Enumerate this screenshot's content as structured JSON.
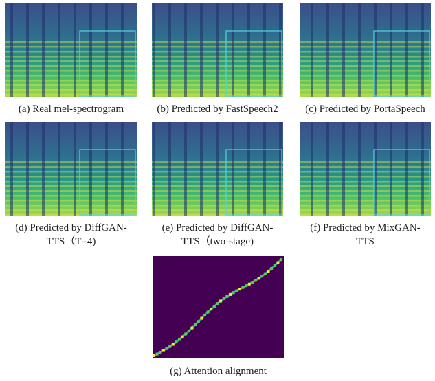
{
  "panels": [
    {
      "caption": [
        "(a) Real mel-spectrogram"
      ]
    },
    {
      "caption": [
        "(b) Predicted by FastSpeech2"
      ]
    },
    {
      "caption": [
        "(c) Predicted by PortaSpeech"
      ]
    },
    {
      "caption": [
        "(d) Predicted by DiffGAN-",
        "TTS（T=4)"
      ]
    },
    {
      "caption": [
        "(e) Predicted by DiffGAN-",
        "TTS（two-stage)"
      ]
    },
    {
      "caption": [
        "(f) Predicted by MixGAN-",
        "TTS"
      ]
    }
  ],
  "alignment": {
    "caption": "(g) Attention alignment"
  }
}
